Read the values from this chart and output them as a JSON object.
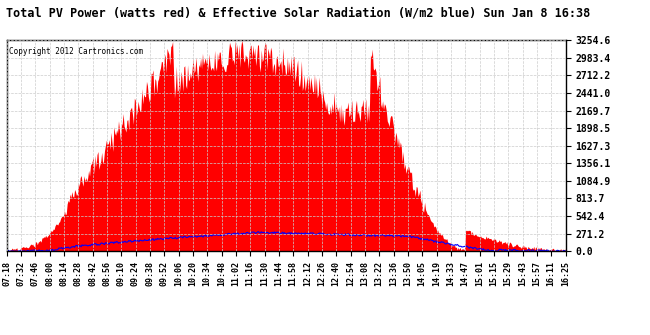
{
  "title": "Total PV Power (watts red) & Effective Solar Radiation (W/m2 blue) Sun Jan 8 16:38",
  "copyright": "Copyright 2012 Cartronics.com",
  "y_ticks": [
    0.0,
    271.2,
    542.4,
    813.7,
    1084.9,
    1356.1,
    1627.3,
    1898.5,
    2169.7,
    2441.0,
    2712.2,
    2983.4,
    3254.6
  ],
  "ymax": 3254.6,
  "ymin": 0.0,
  "x_labels": [
    "07:18",
    "07:32",
    "07:46",
    "08:00",
    "08:14",
    "08:28",
    "08:42",
    "08:56",
    "09:10",
    "09:24",
    "09:38",
    "09:52",
    "10:06",
    "10:20",
    "10:34",
    "10:48",
    "11:02",
    "11:16",
    "11:30",
    "11:44",
    "11:58",
    "12:12",
    "12:26",
    "12:40",
    "12:54",
    "13:08",
    "13:22",
    "13:36",
    "13:50",
    "14:05",
    "14:19",
    "14:33",
    "14:47",
    "15:01",
    "15:15",
    "15:29",
    "15:43",
    "15:57",
    "16:11",
    "16:25"
  ],
  "background_color": "#ffffff",
  "plot_bg": "#ffffff",
  "red_color": "#ff0000",
  "blue_color": "#0000ff",
  "grid_color": "#cccccc",
  "title_color": "#000000",
  "copyright_color": "#000000"
}
